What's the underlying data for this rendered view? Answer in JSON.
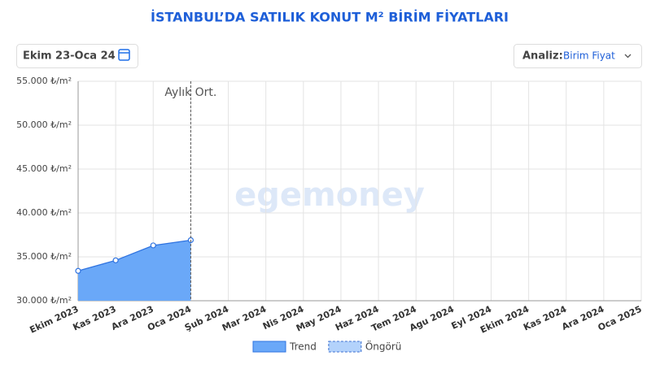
{
  "header": {
    "title": "İSTANBUL’DA SATILIK KONUT M² BİRİM FİYATLARI",
    "date_range": "Ekim 23-Oca 24",
    "analysis_label": "Analiz:",
    "analysis_value": "Birim Fiyat"
  },
  "watermark": "egemoney",
  "chart_data": {
    "type": "area",
    "categories": [
      "Ekim 2023",
      "Kas 2023",
      "Ara 2023",
      "Oca 2024",
      "Şub 2024",
      "Mar 2024",
      "Nis 2024",
      "May 2024",
      "Haz 2024",
      "Tem 2024",
      "Agu 2024",
      "Eyl 2024",
      "Ekim 2024",
      "Kas 2024",
      "Ara 2024",
      "Oca 2025"
    ],
    "series": [
      {
        "name": "Trend",
        "color": "#6aa8f8",
        "values": [
          33400,
          34600,
          36300,
          36900,
          null,
          null,
          null,
          null,
          null,
          null,
          null,
          null,
          null,
          null,
          null,
          null
        ]
      },
      {
        "name": "Öngörü",
        "color": "#b3d2fb",
        "values": [
          null,
          null,
          null,
          null,
          null,
          null,
          null,
          null,
          null,
          null,
          null,
          null,
          null,
          null,
          null,
          null
        ]
      }
    ],
    "ylim": [
      30000,
      55000
    ],
    "yticks": [
      {
        "value": 30000,
        "label": "30.000 ₺/m²"
      },
      {
        "value": 35000,
        "label": "35.000 ₺/m²"
      },
      {
        "value": 40000,
        "label": "40.000 ₺/m²"
      },
      {
        "value": 45000,
        "label": "45.000 ₺/m²"
      },
      {
        "value": 50000,
        "label": "50.000 ₺/m²"
      },
      {
        "value": 55000,
        "label": "55.000 ₺/m²"
      }
    ],
    "annotation": {
      "text": "Aylık Ort.",
      "x": "Oca 2024"
    },
    "grid": true
  }
}
